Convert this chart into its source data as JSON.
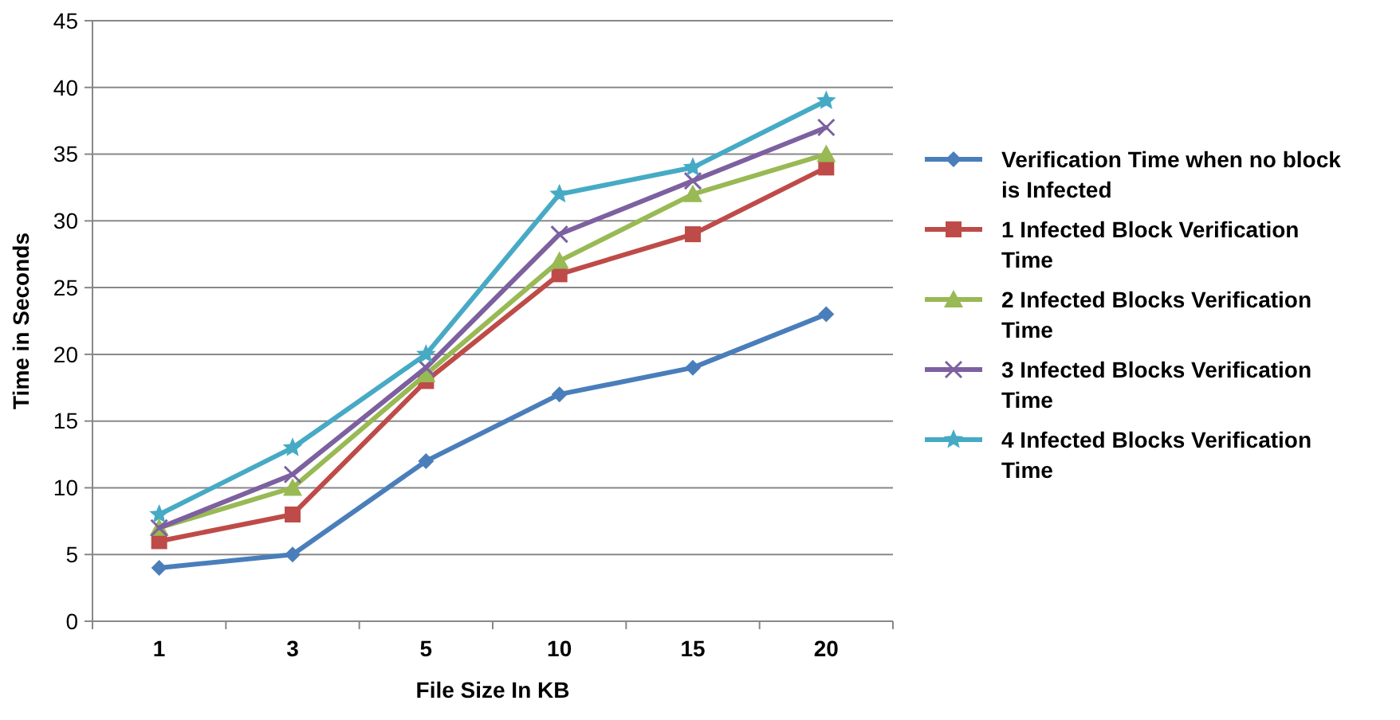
{
  "chart_data": {
    "type": "line",
    "xlabel": "File Size In  KB",
    "ylabel": "Time in Seconds",
    "categories": [
      "1",
      "3",
      "5",
      "10",
      "15",
      "20"
    ],
    "series": [
      {
        "name": "Verification Time when no block is Infected",
        "color": "#4a7ebb",
        "marker": "diamond",
        "values": [
          4,
          5,
          12,
          17,
          19,
          23
        ]
      },
      {
        "name": "1 Infected Block Verification Time",
        "color": "#be4b48",
        "marker": "square",
        "values": [
          6,
          8,
          18,
          26,
          29,
          34
        ]
      },
      {
        "name": "2 Infected Blocks Verification Time",
        "color": "#98b954",
        "marker": "triangle",
        "values": [
          7,
          10,
          18.5,
          27,
          32,
          35
        ]
      },
      {
        "name": "3 Infected Blocks Verification Time",
        "color": "#7d60a0",
        "marker": "cross",
        "values": [
          7,
          11,
          19,
          29,
          33,
          37
        ]
      },
      {
        "name": "4 Infected Blocks Verification Time",
        "color": "#46aac5",
        "marker": "star",
        "values": [
          8,
          13,
          20,
          32,
          34,
          39
        ]
      }
    ],
    "ylim": [
      0,
      45
    ],
    "yticks": [
      0,
      5,
      10,
      15,
      20,
      25,
      30,
      35,
      40,
      45
    ],
    "grid": "y",
    "legend": "right",
    "line_style": "solid"
  }
}
